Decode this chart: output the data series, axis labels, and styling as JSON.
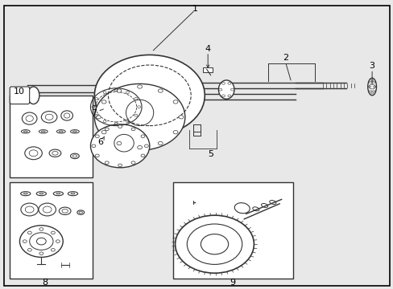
{
  "bg_color": "#e8e8e8",
  "border_color": "#000000",
  "line_color": "#333333",
  "fig_width": 4.89,
  "fig_height": 3.6,
  "dpi": 100
}
